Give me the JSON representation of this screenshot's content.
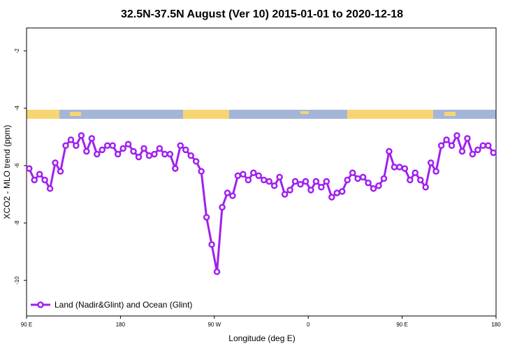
{
  "chart_data": {
    "type": "line",
    "title": "32.5N-37.5N August (Ver 10)   2015-01-01 to 2020-12-18",
    "x_label": "Longitude (deg E)",
    "y_label": "XCO2 - MLO trend (ppm)",
    "x": [
      92.5,
      97.5,
      102.5,
      107.5,
      112.5,
      117.5,
      122.5,
      127.5,
      132.5,
      137.5,
      142.5,
      147.5,
      152.5,
      157.5,
      162.5,
      167.5,
      172.5,
      177.5,
      182.5,
      187.5,
      192.5,
      197.5,
      202.5,
      207.5,
      212.5,
      217.5,
      222.5,
      227.5,
      232.5,
      237.5,
      242.5,
      247.5,
      252.5,
      257.5,
      262.5,
      267.5,
      272.5,
      277.5,
      282.5,
      287.5,
      292.5,
      297.5,
      302.5,
      307.5,
      312.5,
      317.5,
      322.5,
      327.5,
      332.5,
      337.5,
      342.5,
      347.5,
      352.5,
      357.5,
      362.5,
      367.5,
      372.5,
      377.5,
      382.5,
      387.5,
      392.5,
      397.5,
      402.5,
      407.5,
      412.5,
      417.5,
      422.5,
      427.5,
      432.5,
      437.5,
      442.5,
      447.5,
      452.5,
      457.5,
      462.5,
      467.5,
      472.5,
      477.5,
      482.5,
      487.5,
      492.5,
      497.5,
      502.5,
      507.5,
      512.5,
      517.5,
      522.5,
      527.5,
      532.5,
      537.5
    ],
    "series": [
      {
        "name": "Land (Nadir&Glint) and Ocean (Glint)",
        "color": "#a020f0",
        "values": [
          -6.1,
          -6.5,
          -6.3,
          -6.5,
          -6.8,
          -5.9,
          -6.2,
          -5.3,
          -5.1,
          -5.3,
          -4.95,
          -5.5,
          -5.05,
          -5.6,
          -5.45,
          -5.3,
          -5.3,
          -5.6,
          -5.4,
          -5.25,
          -5.5,
          -5.7,
          -5.4,
          -5.65,
          -5.6,
          -5.4,
          -5.6,
          -5.6,
          -6.1,
          -5.3,
          -5.45,
          -5.65,
          -5.85,
          -6.2,
          -7.8,
          -8.75,
          -9.7,
          -7.45,
          -6.95,
          -7.05,
          -6.35,
          -6.3,
          -6.5,
          -6.25,
          -6.35,
          -6.5,
          -6.55,
          -6.7,
          -6.4,
          -7.0,
          -6.85,
          -6.55,
          -6.65,
          -6.55,
          -6.85,
          -6.55,
          -6.75,
          -6.55,
          -7.1,
          -6.95,
          -6.9,
          -6.5,
          -6.25,
          -6.45,
          -6.4,
          -6.6,
          -6.8,
          -6.7,
          -6.45,
          -5.5,
          -6.05,
          -6.05,
          -6.1,
          -6.5,
          -6.25,
          -6.5,
          -6.75,
          -5.9,
          -6.2,
          -5.3,
          -5.1,
          -5.3,
          -4.95,
          -5.5,
          -5.05,
          -5.6,
          -5.45,
          -5.3,
          -5.3,
          -5.55
        ]
      }
    ],
    "xlim": [
      90,
      540
    ],
    "xticks": [
      {
        "value": 90,
        "label": "90 E"
      },
      {
        "value": 180,
        "label": "180"
      },
      {
        "value": 270,
        "label": "90 W"
      },
      {
        "value": 360,
        "label": "0"
      },
      {
        "value": 450,
        "label": "90 E"
      },
      {
        "value": 540,
        "label": "180"
      }
    ],
    "ylim": [
      -11.24,
      -1.2
    ],
    "yticks": [
      -2,
      -4,
      -6,
      -8,
      -10
    ],
    "legend": "bottom-left"
  }
}
